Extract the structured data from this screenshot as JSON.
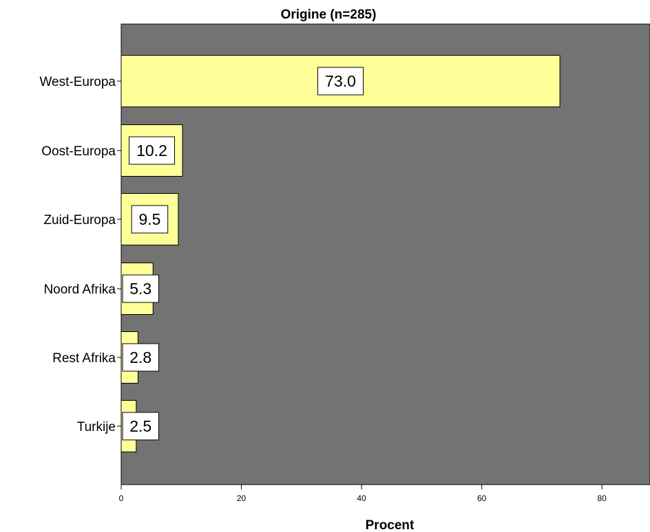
{
  "chart_data": {
    "type": "bar",
    "orientation": "horizontal",
    "title": "Origine (n=285)",
    "xlabel": "Procent",
    "ylabel": "",
    "categories": [
      "West-Europa",
      "Oost-Europa",
      "Zuid-Europa",
      "Noord Afrika",
      "Rest Afrika",
      "Turkije"
    ],
    "values": [
      73.0,
      10.2,
      9.5,
      5.3,
      2.8,
      2.5
    ],
    "data_labels": [
      "73.0",
      "10.2",
      "9.5",
      "5.3",
      "2.8",
      "2.5"
    ],
    "xlim": [
      0,
      88
    ],
    "xticks": [
      0,
      20,
      40,
      60,
      80
    ],
    "xtick_labels": [
      "0",
      "20",
      "40",
      "60",
      "80"
    ],
    "grid": false,
    "legend": "none",
    "colors": {
      "plot_background": "#737373",
      "bar_fill": "#ffff99",
      "bar_stroke": "#000000",
      "label_box": "#ffffff"
    }
  }
}
